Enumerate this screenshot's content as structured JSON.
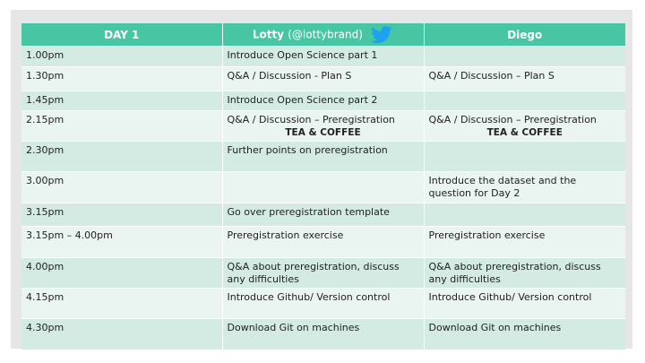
{
  "colors": {
    "header_bg": "#48c6a4",
    "row_dark": "#d3ebe3",
    "row_light": "#eaf4f0",
    "twitter_blue": "#1da1f2"
  },
  "header": {
    "col1": "DAY 1",
    "col2_name": "Lotty",
    "col2_handle": "(@lottybrand)",
    "col2_icon": "twitter-bird-icon",
    "col3": "Diego"
  },
  "rows": [
    {
      "time": "1.00pm",
      "lotty": "Introduce Open Science part 1",
      "lotty_sub": "",
      "diego": "",
      "diego_sub": ""
    },
    {
      "time": "1.30pm",
      "lotty": " Q&A / Discussion - Plan S",
      "lotty_sub": "",
      "diego": "Q&A / Discussion – Plan S",
      "diego_sub": ""
    },
    {
      "time": "1.45pm",
      "lotty": "Introduce Open Science part 2",
      "lotty_sub": "",
      "diego": "",
      "diego_sub": ""
    },
    {
      "time": "2.15pm",
      "lotty": "Q&A / Discussion – Preregistration",
      "lotty_sub": "TEA & COFFEE",
      "diego": "Q&A / Discussion – Preregistration",
      "diego_sub": "TEA & COFFEE"
    },
    {
      "time": "2.30pm",
      "lotty": "Further points on preregistration",
      "lotty_sub": "",
      "diego": "",
      "diego_sub": ""
    },
    {
      "time": "3.00pm",
      "lotty": "",
      "lotty_sub": "",
      "diego": "Introduce the dataset and the question for Day 2",
      "diego_sub": ""
    },
    {
      "time": "3.15pm",
      "lotty": "Go over preregistration template",
      "lotty_sub": "",
      "diego": "",
      "diego_sub": ""
    },
    {
      "time": "3.15pm – 4.00pm",
      "lotty": "Preregistration exercise",
      "lotty_sub": "",
      "diego": "Preregistration exercise",
      "diego_sub": ""
    },
    {
      "time": "4.00pm",
      "lotty": "Q&A about preregistration, discuss any difficulties",
      "lotty_sub": "",
      "diego": "Q&A about preregistration, discuss any difficulties",
      "diego_sub": ""
    },
    {
      "time": "4.15pm",
      "lotty": "Introduce Github/ Version control",
      "lotty_sub": "",
      "diego": "Introduce Github/ Version control",
      "diego_sub": ""
    },
    {
      "time": "4.30pm",
      "lotty": "Download Git on machines",
      "lotty_sub": "",
      "diego": "Download Git on machines",
      "diego_sub": ""
    }
  ]
}
